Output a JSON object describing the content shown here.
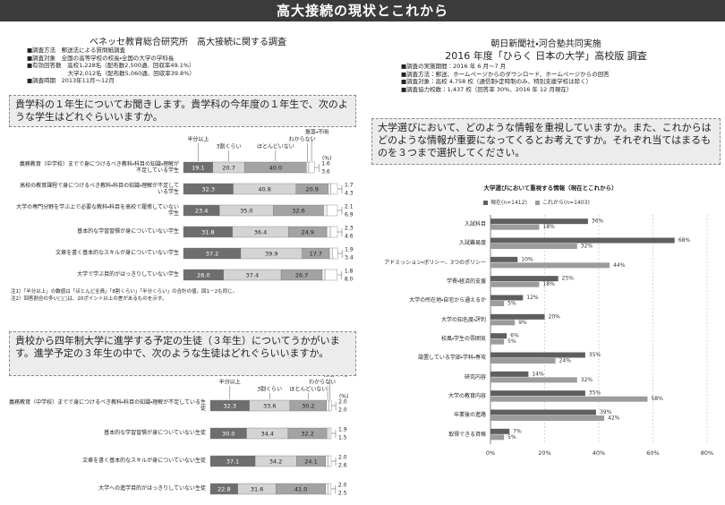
{
  "header": {
    "title": "高大接続の現状とこれから"
  },
  "left": {
    "title": "ベネッセ教育総合研究所　高大接続に関する調査",
    "info": [
      "■調査方法　郵送法による質問紙調査",
      "■調査対象　全国の高等学校の校長・全国の大学の学科長",
      "■有効回答数　高校1,228名（配布数2,500通、回収率49.1%）",
      "　　　　　　　大学2,012名（配布数5,060通、回収率39.8%）",
      "■調査時期　2013年11月～12月"
    ],
    "question1": "貴学科の１年生についてお聞きします。貴学科の今年度の１年生で、次のような学生はどれぐらいいますか。",
    "chart1": {
      "type": "stacked-bar",
      "unit": "(%)",
      "categories": [
        "義務教育（中学校）までで身につけるべき教科・科目の知識・理解が不足している学生",
        "高校の教育課程で身につけるべき教科・科目の知識・理解が不足している学生",
        "大学の専門分野を学ぶ上で必要な教科・科目を高校で履修していない学生",
        "基本的な学習習慣が身についていない学生",
        "文章を書く基本的なスキルが身についていない学生",
        "大学で学ぶ目的がはっきりしていない学生"
      ],
      "series": [
        {
          "name": "半分以上",
          "color": "#6e6e6e",
          "values": [
            19.1,
            32.3,
            23.4,
            31.8,
            37.2,
            26.0
          ],
          "value_labels": [
            "19.1",
            "32.3",
            "23.4",
            "31.8",
            "37.2",
            "26.0"
          ]
        },
        {
          "name": "3割くらい",
          "color": "#d4d4d4",
          "values": [
            20.7,
            40.8,
            35.0,
            36.4,
            39.9,
            37.4
          ],
          "value_labels": [
            "20.7",
            "40.8",
            "35.0",
            "36.4",
            "39.9",
            "37.4"
          ]
        },
        {
          "name": "ほとんどいない",
          "color": "#a3a3a3",
          "values": [
            40.0,
            20.9,
            32.6,
            24.9,
            17.7,
            26.7
          ],
          "value_labels": [
            "40.0",
            "20.9",
            "32.6",
            "24.9",
            "17.7",
            "26.7"
          ]
        },
        {
          "name": "わからない",
          "color": "#f4f4f4",
          "values": [
            1.6,
            1.7,
            2.1,
            2.3,
            1.9,
            1.8
          ],
          "value_labels": [
            "1.6",
            "1.7",
            "2.1",
            "2.3",
            "1.9",
            "1.8"
          ]
        },
        {
          "name": "無答・不明",
          "color": "#ffffff",
          "values": [
            3.6,
            4.3,
            6.9,
            4.6,
            3.4,
            8.0
          ],
          "value_labels": [
            "3.6",
            "4.3",
            "6.9",
            "4.6",
            "3.4",
            "8.0"
          ]
        }
      ]
    },
    "notes": [
      "注1）「半分以上」の数値は「ほとんど全員」「8割くらい」「半分くらい」の合計の値。図1－2も同じ。",
      "注2）回答割合の多い□□は、20ポイント以上の差があるものを示す。"
    ],
    "question2": "貴校から四年制大学に進学する予定の生徒（３年生）についてうかがいます。進学予定の３年生の中で、次のような生徒はどれぐらいいますか。",
    "chart2": {
      "type": "stacked-bar",
      "unit": "(%)",
      "categories": [
        "義務教育（中学校）までで身につけるべき教科・科目の知識・理解が不足している生徒",
        "基本的な学習習慣が身についていない生徒",
        "文章を書く基本的なスキルが身についていない生徒",
        "大学への進学目的がはっきりしていない生徒"
      ],
      "series": [
        {
          "name": "半分以上",
          "color": "#6e6e6e",
          "values": [
            32.3,
            30.0,
            37.1,
            22.8
          ],
          "value_labels": [
            "32.3",
            "30.0",
            "37.1",
            "22.8"
          ]
        },
        {
          "name": "3割くらい",
          "color": "#d4d4d4",
          "values": [
            33.6,
            34.4,
            34.2,
            31.6
          ],
          "value_labels": [
            "33.6",
            "34.4",
            "34.2",
            "31.6"
          ]
        },
        {
          "name": "ほとんどいない",
          "color": "#a3a3a3",
          "values": [
            30.2,
            32.2,
            24.1,
            41.0
          ],
          "value_labels": [
            "30.2",
            "32.2",
            "24.1",
            "41.0"
          ]
        },
        {
          "name": "わからない",
          "color": "#f4f4f4",
          "values": [
            2.0,
            1.9,
            2.0,
            2.0
          ],
          "value_labels": [
            "2.0",
            "1.9",
            "2.0",
            "2.0"
          ]
        },
        {
          "name": "無答・不明",
          "color": "#ffffff",
          "values": [
            2.0,
            1.5,
            2.6,
            2.5
          ],
          "value_labels": [
            "2.0",
            "1.5",
            "2.6",
            "2.5"
          ]
        }
      ]
    }
  },
  "right": {
    "title1": "朝日新聞社・河合塾共同実施",
    "title2": "2016 年度「ひらく 日本の大学」高校版 調査",
    "info": [
      "■調査の実施期間：2016 年 6 月～7 月",
      "■調査方法：郵送、ホームページからのダウンロード、ホームページからの回答",
      "■調査対象：高校 4,758 校（通信制・定時制のみ、特別支援学校は除く）",
      "■調査協力校数：1,437 校（回答率 30%、2016 年 12 月現在）"
    ],
    "question": "大学選びにおいて、どのような情報を重視していますか。また、これからはどのような情報が重要になってくるとお考えですか。それぞれ当てはまるものを３つまで選択してください。",
    "chart": {
      "type": "bar",
      "orientation": "horizontal",
      "title": "大学選びにおいて重視する情報（現在とこれから）",
      "categories": [
        "入試科目",
        "入試難易度",
        "アドミッション・ポリシー、3つのポリシー",
        "学費・経済的支援",
        "大学の所在地・自宅から通えるか",
        "大学の知名度・評判",
        "校風・学生の雰囲気",
        "設置している学部・学科・専攻",
        "研究内容",
        "大学の教育内容",
        "卒業後の進路",
        "取得できる資格"
      ],
      "series": [
        {
          "name": "現在(n=1412)",
          "color": "#5f5f5f",
          "values": [
            36,
            68,
            10,
            25,
            12,
            20,
            6,
            35,
            14,
            35,
            39,
            7
          ],
          "value_labels": [
            "36%",
            "68%",
            "10%",
            "25%",
            "12%",
            "20%",
            "6%",
            "35%",
            "14%",
            "35%",
            "39%",
            "7%"
          ]
        },
        {
          "name": "これから(n=1403)",
          "color": "#9c9c9c",
          "values": [
            18,
            32,
            44,
            18,
            5,
            9,
            5,
            24,
            32,
            58,
            42,
            5
          ],
          "value_labels": [
            "18%",
            "32%",
            "44%",
            "18%",
            "5%",
            "9%",
            "5%",
            "24%",
            "32%",
            "58%",
            "42%",
            "5%"
          ]
        }
      ],
      "xlim": [
        0,
        80
      ],
      "xticks": [
        {
          "value": 0,
          "label": "0%"
        },
        {
          "value": 20,
          "label": "20%"
        },
        {
          "value": 40,
          "label": "40%"
        },
        {
          "value": 60,
          "label": "60%"
        },
        {
          "value": 80,
          "label": "80%"
        }
      ],
      "grid": true,
      "legend": "top"
    }
  }
}
